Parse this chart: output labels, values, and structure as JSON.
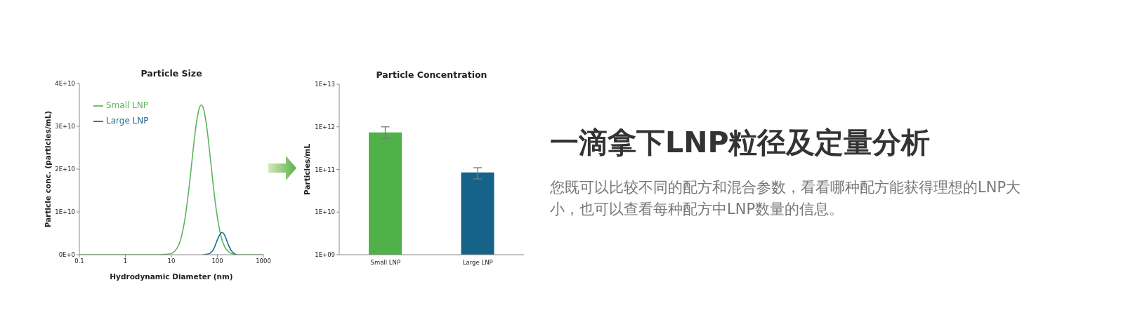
{
  "chart_data": [
    {
      "type": "line",
      "title": "Particle Size",
      "xlabel": "Hydrodynamic Diameter (nm)",
      "ylabel": "Particle conc. (particles/mL)",
      "log": "x",
      "xlim": [
        0.1,
        1000
      ],
      "xticks": [
        0.1,
        1,
        10,
        100,
        1000
      ],
      "ylim": [
        0,
        40000000000.0
      ],
      "yticks": [
        {
          "value": 0,
          "label": "0E+0"
        },
        {
          "value": 10000000000.0,
          "label": "1E+10"
        },
        {
          "value": 20000000000.0,
          "label": "2E+10"
        },
        {
          "value": 30000000000.0,
          "label": "3E+10"
        },
        {
          "value": 40000000000.0,
          "label": "4E+10"
        }
      ],
      "legend": "top left",
      "marker": "none",
      "line_style": "solid",
      "series": [
        {
          "name": "Small LNP",
          "color": "#5db55a",
          "x": [
            0.1,
            1,
            5,
            8,
            10,
            12,
            15,
            18,
            20,
            25,
            30,
            35,
            40,
            45,
            50,
            55,
            60,
            70,
            80,
            90,
            100,
            120,
            150,
            200,
            250,
            300,
            1000
          ],
          "values": [
            0,
            0,
            0,
            100000000.0,
            300000000.0,
            900000000.0,
            2700000000.0,
            6000000000.0,
            8800000000.0,
            17000000000.0,
            24900000000.0,
            30800000000.0,
            34100000000.0,
            35000000000.0,
            34100000000.0,
            31900000000.0,
            29100000000.0,
            22700000000.0,
            16900000000.0,
            12200000000.0,
            8700000000.0,
            4300000000.0,
            1500000000.0,
            300000000.0,
            0,
            0,
            0
          ]
        },
        {
          "name": "Large LNP",
          "color": "#1d6a94",
          "x": [
            50,
            60,
            70,
            80,
            90,
            100,
            110,
            126,
            140,
            160,
            180,
            200,
            230,
            260
          ],
          "values": [
            0,
            100000000.0,
            400000000.0,
            1000000000.0,
            2200000000.0,
            3500000000.0,
            4500000000.0,
            5200000000.0,
            4800000000.0,
            3300000000.0,
            1900000000.0,
            1000000000.0,
            300000000.0,
            0
          ]
        }
      ]
    },
    {
      "type": "bar",
      "title": "Particle Concentration",
      "ylabel": "Particles/mL",
      "log": true,
      "categories": [
        "Small LNP",
        "Large LNP"
      ],
      "values": [
        740000000000.0,
        85000000000.0
      ],
      "colors": [
        "#50b148",
        "#156388"
      ],
      "errors": [
        [
          530000000000.0,
          1000000000000.0
        ],
        [
          60000000000.0,
          110000000000.0
        ]
      ],
      "ylim": [
        1000000000.0,
        10000000000000.0
      ],
      "yticks": [
        {
          "value": 1000000000.0,
          "label": "1E+09"
        },
        {
          "value": 10000000000.0,
          "label": "1E+10"
        },
        {
          "value": 100000000000.0,
          "label": "1E+11"
        },
        {
          "value": 1000000000000.0,
          "label": "1E+12"
        },
        {
          "value": 10000000000000.0,
          "label": "1E+13"
        }
      ]
    },
    {
      "type": "other",
      "title": "一滴拿下LNP粒径及定量分析",
      "subtitle": "您既可以比较不同的配方和混合参数，看看哪种配方能获得理想的LNP大小，也可以查看每种配方中LNP数量的信息。"
    }
  ]
}
